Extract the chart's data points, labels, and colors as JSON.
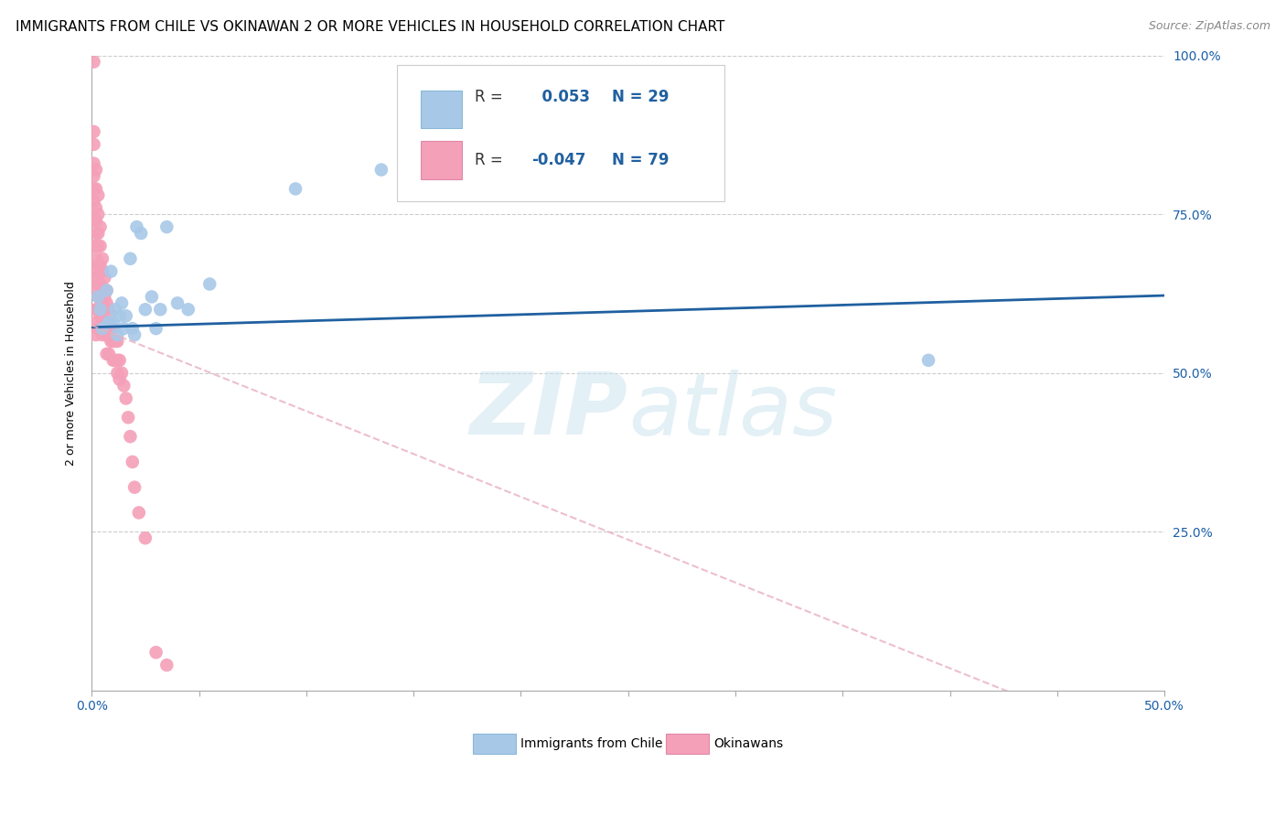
{
  "title": "IMMIGRANTS FROM CHILE VS OKINAWAN 2 OR MORE VEHICLES IN HOUSEHOLD CORRELATION CHART",
  "source": "Source: ZipAtlas.com",
  "ylabel": "2 or more Vehicles in Household",
  "xlim": [
    0.0,
    0.5
  ],
  "ylim": [
    0.0,
    1.0
  ],
  "xtick_positions": [
    0.0,
    0.05,
    0.1,
    0.15,
    0.2,
    0.25,
    0.3,
    0.35,
    0.4,
    0.45,
    0.5
  ],
  "xticklabels": [
    "0.0%",
    "",
    "",
    "",
    "",
    "",
    "",
    "",
    "",
    "",
    "50.0%"
  ],
  "ytick_positions": [
    0.0,
    0.25,
    0.5,
    0.75,
    1.0
  ],
  "yticklabels_right": [
    "",
    "25.0%",
    "50.0%",
    "75.0%",
    "100.0%"
  ],
  "legend_r_blue": " 0.053",
  "legend_n_blue": "29",
  "legend_r_pink": "-0.047",
  "legend_n_pink": "79",
  "color_blue": "#a8c8e8",
  "color_pink": "#f4a0b8",
  "line_color_blue": "#2060a0",
  "line_color_pink": "#e8b0c0",
  "watermark_zip": "ZIP",
  "watermark_atlas": "atlas",
  "grid_color": "#cccccc",
  "background_color": "#ffffff",
  "title_fontsize": 11,
  "axis_label_fontsize": 9,
  "tick_fontsize": 10,
  "source_fontsize": 9,
  "blue_scatter_x": [
    0.003,
    0.004,
    0.005,
    0.007,
    0.008,
    0.009,
    0.01,
    0.011,
    0.012,
    0.013,
    0.014,
    0.015,
    0.016,
    0.018,
    0.019,
    0.02,
    0.021,
    0.023,
    0.025,
    0.028,
    0.03,
    0.032,
    0.035,
    0.04,
    0.045,
    0.055,
    0.095,
    0.135,
    0.39
  ],
  "blue_scatter_y": [
    0.62,
    0.6,
    0.57,
    0.63,
    0.58,
    0.66,
    0.58,
    0.6,
    0.56,
    0.59,
    0.61,
    0.57,
    0.59,
    0.68,
    0.57,
    0.56,
    0.73,
    0.72,
    0.6,
    0.62,
    0.57,
    0.6,
    0.73,
    0.61,
    0.6,
    0.64,
    0.79,
    0.82,
    0.52
  ],
  "pink_scatter_x": [
    0.001,
    0.001,
    0.001,
    0.001,
    0.001,
    0.001,
    0.001,
    0.001,
    0.001,
    0.001,
    0.002,
    0.002,
    0.002,
    0.002,
    0.002,
    0.002,
    0.002,
    0.002,
    0.002,
    0.002,
    0.002,
    0.002,
    0.003,
    0.003,
    0.003,
    0.003,
    0.003,
    0.003,
    0.003,
    0.003,
    0.003,
    0.004,
    0.004,
    0.004,
    0.004,
    0.004,
    0.004,
    0.005,
    0.005,
    0.005,
    0.005,
    0.005,
    0.005,
    0.006,
    0.006,
    0.006,
    0.006,
    0.007,
    0.007,
    0.007,
    0.007,
    0.007,
    0.008,
    0.008,
    0.008,
    0.008,
    0.009,
    0.009,
    0.01,
    0.01,
    0.01,
    0.011,
    0.011,
    0.012,
    0.012,
    0.012,
    0.013,
    0.013,
    0.014,
    0.015,
    0.016,
    0.017,
    0.018,
    0.019,
    0.02,
    0.022,
    0.025,
    0.03,
    0.035
  ],
  "pink_scatter_y": [
    0.99,
    0.88,
    0.86,
    0.83,
    0.81,
    0.79,
    0.77,
    0.74,
    0.7,
    0.66,
    0.82,
    0.79,
    0.76,
    0.74,
    0.72,
    0.7,
    0.68,
    0.65,
    0.63,
    0.6,
    0.58,
    0.56,
    0.78,
    0.75,
    0.72,
    0.7,
    0.67,
    0.64,
    0.62,
    0.6,
    0.57,
    0.73,
    0.7,
    0.67,
    0.64,
    0.62,
    0.59,
    0.68,
    0.66,
    0.63,
    0.61,
    0.58,
    0.56,
    0.65,
    0.62,
    0.6,
    0.57,
    0.63,
    0.61,
    0.58,
    0.56,
    0.53,
    0.6,
    0.58,
    0.56,
    0.53,
    0.57,
    0.55,
    0.57,
    0.55,
    0.52,
    0.55,
    0.52,
    0.55,
    0.52,
    0.5,
    0.52,
    0.49,
    0.5,
    0.48,
    0.46,
    0.43,
    0.4,
    0.36,
    0.32,
    0.28,
    0.24,
    0.06,
    0.04
  ]
}
